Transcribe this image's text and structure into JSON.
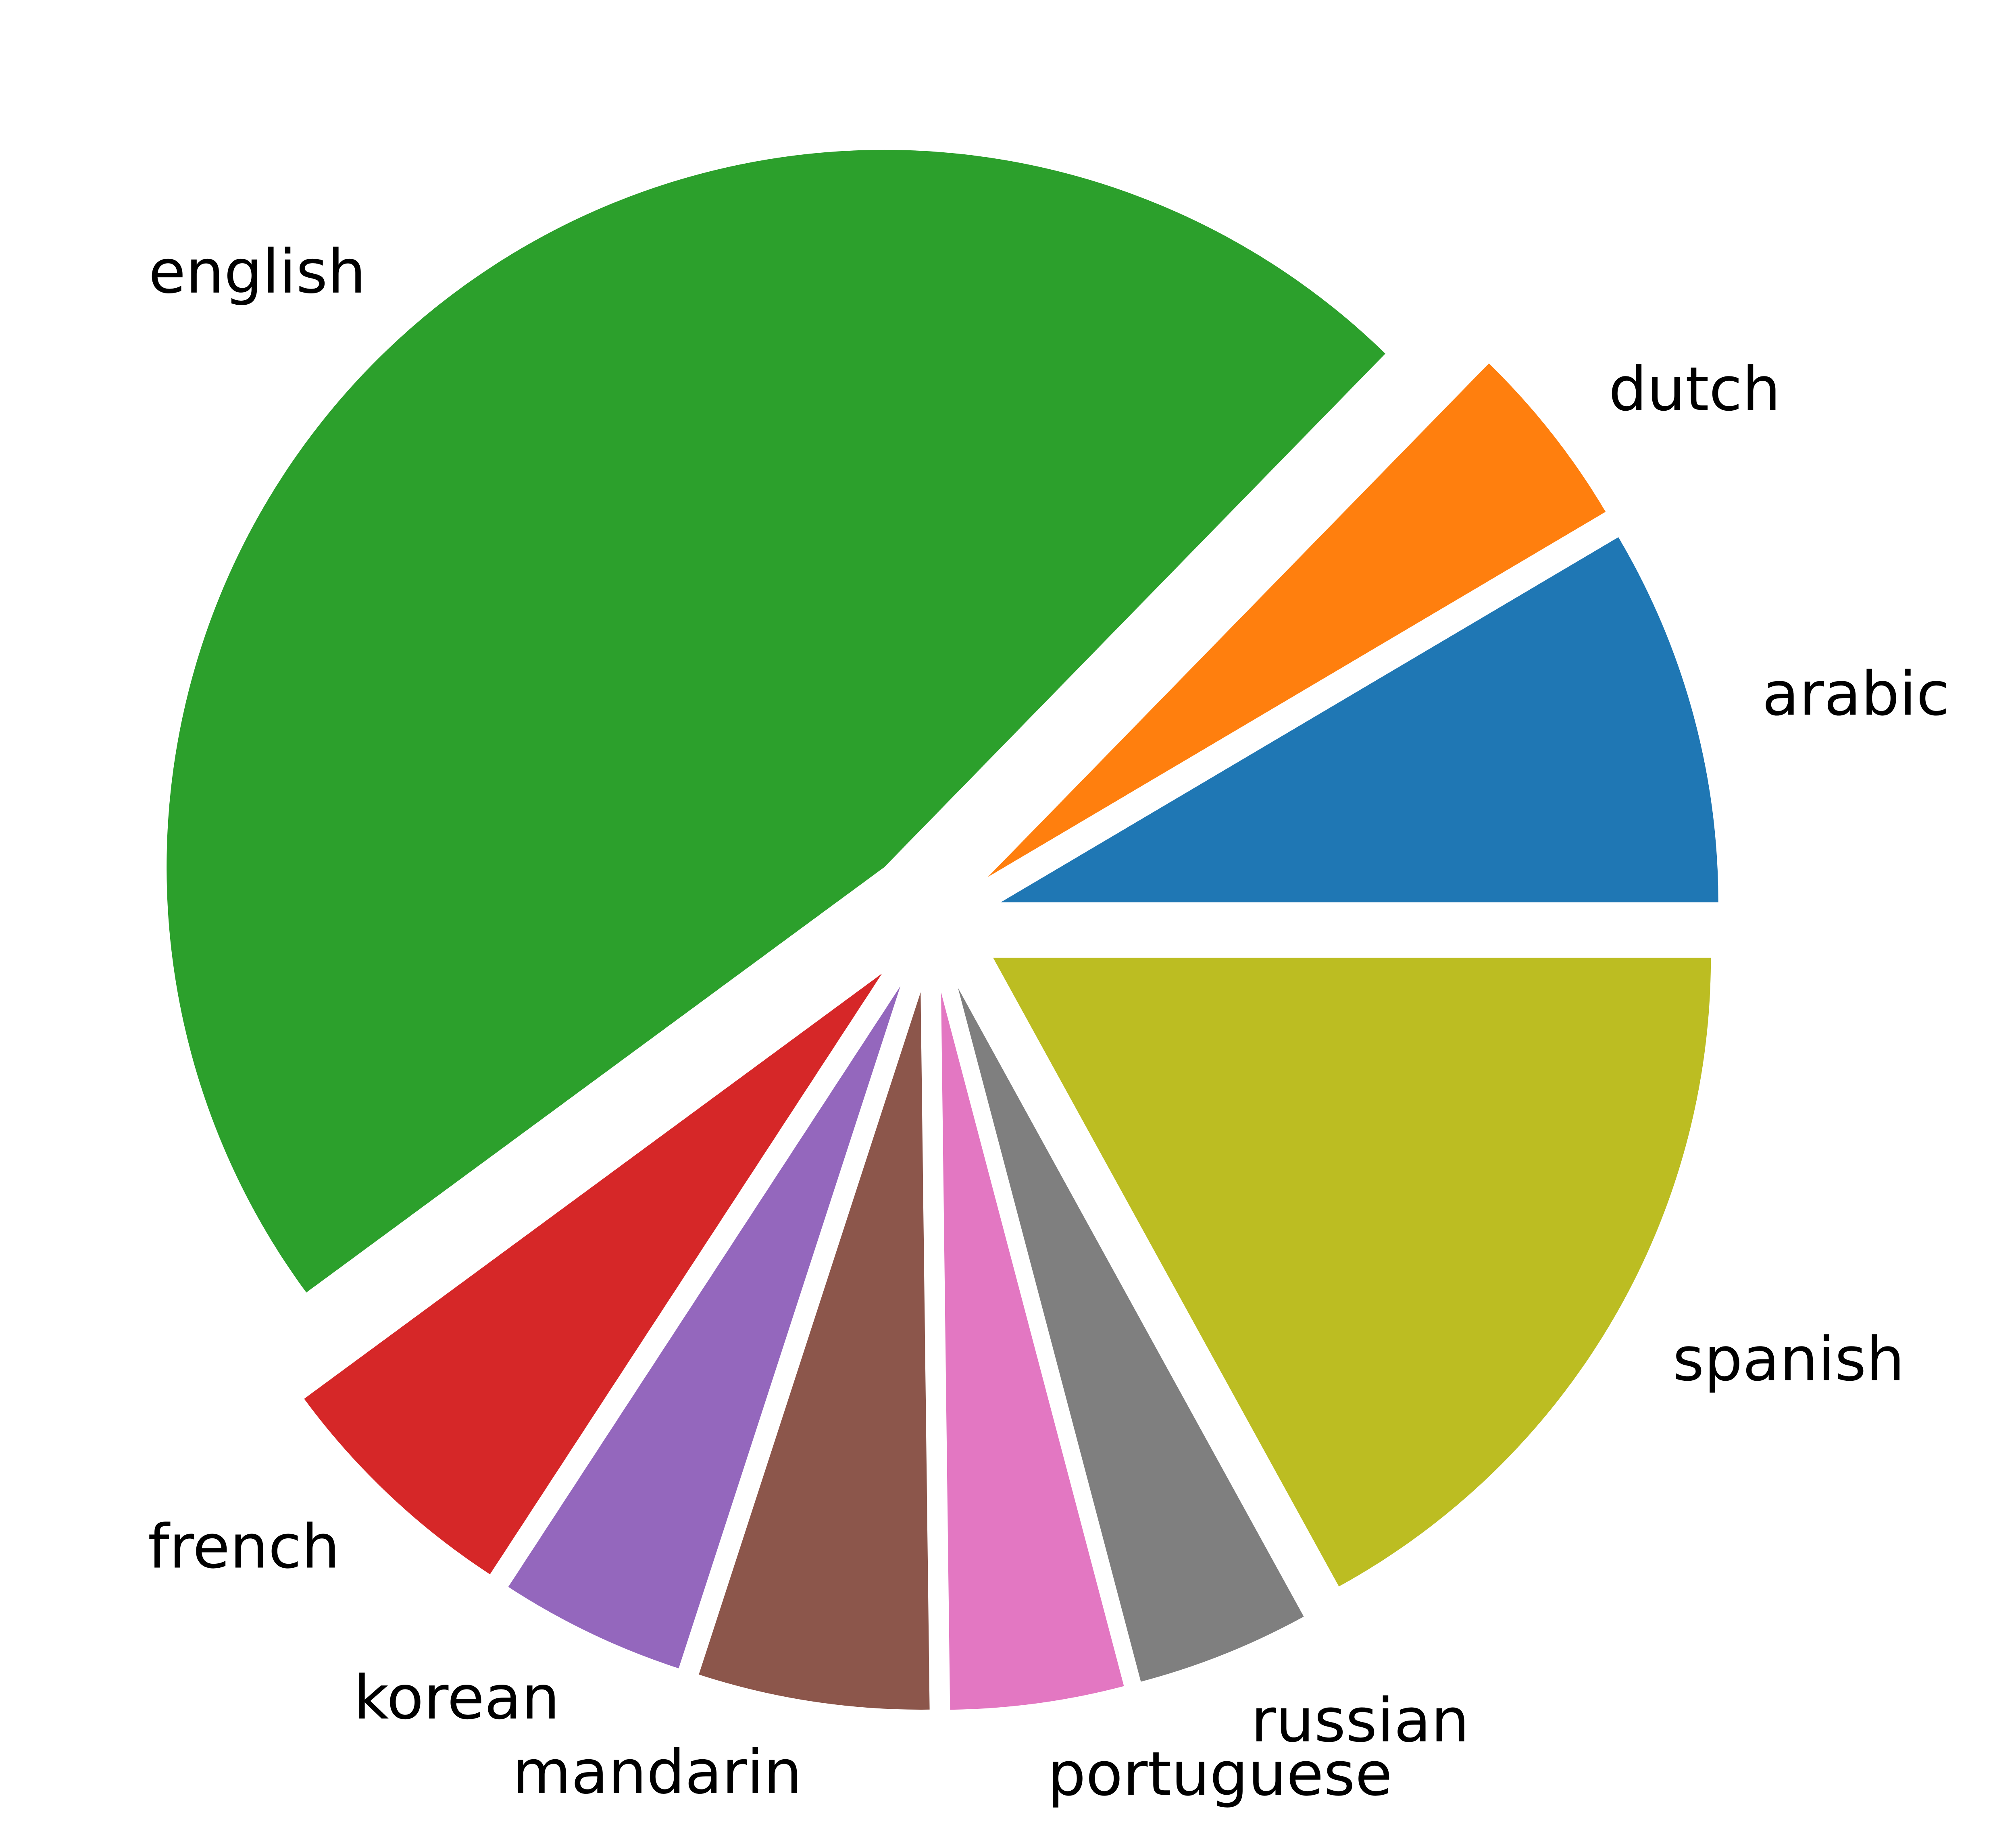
{
  "chart_data": {
    "type": "pie",
    "title": "",
    "start_angle_deg": 0,
    "direction": "counterclockwise",
    "slices": [
      {
        "label": "arabic",
        "value": 8.5,
        "color": "#1f77b4"
      },
      {
        "label": "dutch",
        "value": 4.2,
        "color": "#ff7f0e"
      },
      {
        "label": "english",
        "value": 47.4,
        "color": "#2ca02c"
      },
      {
        "label": "french",
        "value": 5.7,
        "color": "#d62728"
      },
      {
        "label": "korean",
        "value": 4.2,
        "color": "#9467bd"
      },
      {
        "label": "mandarin",
        "value": 5.2,
        "color": "#8c564b"
      },
      {
        "label": "portuguese",
        "value": 3.9,
        "color": "#e377c2"
      },
      {
        "label": "russian",
        "value": 3.9,
        "color": "#7f7f7f"
      },
      {
        "label": "spanish",
        "value": 17.0,
        "color": "#bcbd22"
      }
    ]
  }
}
